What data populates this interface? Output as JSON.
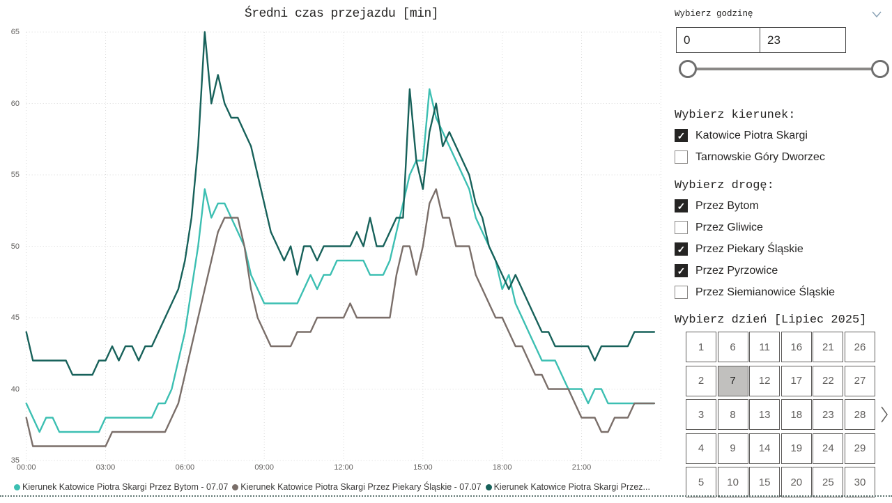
{
  "chart": {
    "title": "Średni czas przejazdu [min]",
    "y_ticks": [
      "65",
      "60",
      "55",
      "50",
      "45",
      "40",
      "35"
    ],
    "x_ticks": [
      "00:00",
      "03:00",
      "06:00",
      "09:00",
      "12:00",
      "15:00",
      "18:00",
      "21:00"
    ],
    "grid_color": "#D9D9D9",
    "axis_text_color": "#605E5C"
  },
  "chart_data": {
    "type": "line",
    "title": "Średni czas przejazdu [min]",
    "xlabel": "",
    "ylabel": "",
    "ylim": [
      35,
      65
    ],
    "x_start": "00:00",
    "x_interval_minutes": 15,
    "x_tick_labels": [
      "00:00",
      "03:00",
      "06:00",
      "09:00",
      "12:00",
      "15:00",
      "18:00",
      "21:00"
    ],
    "grid": true,
    "legend_position": "bottom",
    "series": [
      {
        "name": "Kierunek Katowice Piotra Skargi Przez Bytom - 07.07",
        "color": "#3CBFB2",
        "values": [
          39,
          38,
          37,
          38,
          38,
          37,
          37,
          37,
          37,
          37,
          37,
          37,
          38,
          38,
          38,
          38,
          38,
          38,
          38,
          38,
          39,
          39,
          40,
          42,
          44,
          47,
          50,
          54,
          52,
          53,
          53,
          52,
          51,
          50,
          48,
          47,
          46,
          46,
          46,
          46,
          46,
          46,
          47,
          48,
          47,
          48,
          48,
          49,
          49,
          49,
          49,
          49,
          48,
          48,
          48,
          49,
          51,
          53,
          55,
          56,
          56,
          61,
          59,
          58,
          57,
          56,
          55,
          54,
          52,
          51,
          50,
          49,
          47,
          48,
          46,
          45,
          44,
          43,
          42,
          42,
          42,
          41,
          40,
          40,
          40,
          39,
          40,
          40,
          39,
          39,
          39,
          39,
          39,
          39,
          39,
          39
        ]
      },
      {
        "name": "Kierunek Katowice Piotra Skargi Przez Piekary Śląskie - 07.07",
        "color": "#7A6E69",
        "values": [
          38,
          36,
          36,
          36,
          36,
          36,
          36,
          36,
          36,
          36,
          36,
          36,
          36,
          37,
          37,
          37,
          37,
          37,
          37,
          37,
          37,
          37,
          38,
          39,
          41,
          43,
          45,
          47,
          49,
          51,
          52,
          52,
          52,
          50,
          47,
          45,
          44,
          43,
          43,
          43,
          43,
          44,
          44,
          44,
          45,
          45,
          45,
          45,
          45,
          46,
          45,
          45,
          45,
          45,
          45,
          45,
          48,
          50,
          50,
          48,
          50,
          53,
          54,
          52,
          52,
          50,
          50,
          50,
          48,
          47,
          46,
          45,
          45,
          44,
          43,
          43,
          42,
          41,
          41,
          40,
          40,
          40,
          40,
          39,
          38,
          38,
          38,
          37,
          37,
          38,
          38,
          38,
          39,
          39,
          39,
          39
        ]
      },
      {
        "name": "Kierunek Katowice Piotra Skargi Przez...",
        "color": "#17615A",
        "values": [
          44,
          42,
          42,
          42,
          42,
          42,
          42,
          41,
          41,
          41,
          41,
          42,
          42,
          43,
          42,
          43,
          43,
          42,
          43,
          43,
          44,
          45,
          46,
          47,
          49,
          52,
          57,
          65,
          60,
          62,
          60,
          59,
          59,
          58,
          57,
          55,
          53,
          51,
          50,
          49,
          50,
          48,
          50,
          50,
          49,
          50,
          50,
          50,
          50,
          50,
          51,
          50,
          52,
          50,
          50,
          51,
          52,
          52,
          61,
          56,
          54,
          58,
          60,
          57,
          58,
          57,
          56,
          55,
          53,
          52,
          50,
          49,
          48,
          47,
          48,
          47,
          46,
          45,
          44,
          44,
          43,
          43,
          43,
          43,
          43,
          43,
          42,
          43,
          43,
          43,
          43,
          43,
          44,
          44,
          44,
          44
        ]
      }
    ]
  },
  "legend": [
    {
      "label": "Kierunek Katowice Piotra Skargi Przez Bytom - 07.07",
      "color": "#3CBFB2"
    },
    {
      "label": "Kierunek Katowice Piotra Skargi Przez Piekary Śląskie - 07.07",
      "color": "#7A6E69"
    },
    {
      "label": "Kierunek Katowice Piotra Skargi Przez...",
      "color": "#17615A"
    }
  ],
  "panel": {
    "hour_filter": {
      "title": "Wybierz godzinę",
      "from_value": "0",
      "to_value": "23",
      "slider_min_label": "0",
      "slider_max_label": "23"
    },
    "direction_filter": {
      "title": "Wybierz kierunek:",
      "options": [
        {
          "label": "Katowice Piotra Skargi",
          "checked": true
        },
        {
          "label": "Tarnowskie Góry Dworzec",
          "checked": false
        }
      ]
    },
    "route_filter": {
      "title": "Wybierz drogę:",
      "options": [
        {
          "label": "Przez Bytom",
          "checked": true
        },
        {
          "label": "Przez Gliwice",
          "checked": false
        },
        {
          "label": "Przez Piekary Śląskie",
          "checked": true
        },
        {
          "label": "Przez Pyrzowice",
          "checked": true
        },
        {
          "label": "Przez Siemianowice Śląskie",
          "checked": false
        }
      ]
    },
    "day_filter": {
      "title": "Wybierz dzień [Lipiec 2025]",
      "days_row_major": [
        1,
        6,
        11,
        16,
        21,
        26,
        2,
        7,
        12,
        17,
        22,
        27,
        3,
        8,
        13,
        18,
        23,
        28,
        4,
        9,
        14,
        19,
        24,
        29,
        5,
        10,
        15,
        20,
        25,
        30
      ],
      "selected_day": 7,
      "next_icon": "chevron-right"
    }
  }
}
